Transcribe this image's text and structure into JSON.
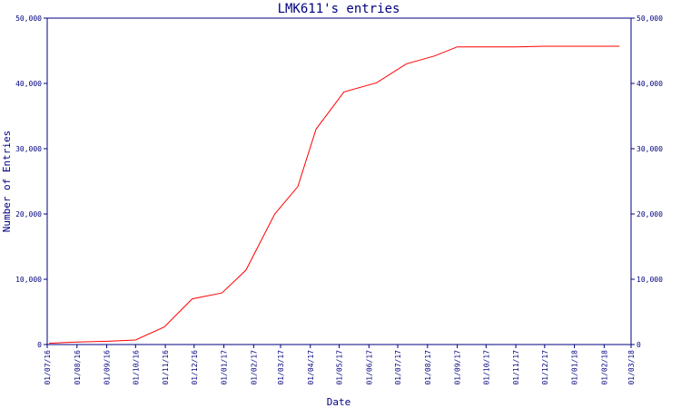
{
  "chart_data": {
    "type": "line",
    "title": "LMK611's entries",
    "xlabel": "Date",
    "ylabel": "Number of Entries",
    "ylim": [
      0,
      50000
    ],
    "y_ticks": [
      0,
      10000,
      20000,
      30000,
      40000,
      50000
    ],
    "y_tick_labels": [
      "0",
      "10,000",
      "20,000",
      "30,000",
      "40,000",
      "50,000"
    ],
    "x_ticks": [
      "2016-07-01",
      "2016-08-01",
      "2016-09-01",
      "2016-10-01",
      "2016-11-01",
      "2016-12-01",
      "2017-01-01",
      "2017-02-01",
      "2017-03-01",
      "2017-04-01",
      "2017-05-01",
      "2017-06-01",
      "2017-07-01",
      "2017-08-01",
      "2017-09-01",
      "2017-10-01",
      "2017-11-01",
      "2017-12-01",
      "2018-01-01",
      "2018-02-01",
      "2018-03-01"
    ],
    "x_tick_labels": [
      "01/07/16",
      "01/08/16",
      "01/09/16",
      "01/10/16",
      "01/11/16",
      "01/12/16",
      "01/01/17",
      "01/02/17",
      "01/03/17",
      "01/04/17",
      "01/05/17",
      "01/06/17",
      "01/07/17",
      "01/08/17",
      "01/09/17",
      "01/10/17",
      "01/11/17",
      "01/12/17",
      "01/01/18",
      "01/02/18",
      "01/03/18"
    ],
    "grid": false,
    "series": [
      {
        "color": "#ff0000",
        "x": [
          "2016-07-03",
          "2016-07-20",
          "2016-08-05",
          "2016-09-01",
          "2016-10-01",
          "2016-10-31",
          "2016-11-29",
          "2016-12-30",
          "2017-01-24",
          "2017-02-23",
          "2017-03-19",
          "2017-04-07",
          "2017-05-06",
          "2017-06-09",
          "2017-07-10",
          "2017-08-08",
          "2017-09-01",
          "2017-10-01",
          "2017-11-01",
          "2017-12-01",
          "2018-01-01",
          "2018-02-01",
          "2018-02-17"
        ],
        "values": [
          200,
          300,
          400,
          500,
          700,
          2700,
          7000,
          7900,
          11400,
          20000,
          24200,
          33000,
          38700,
          40100,
          43000,
          44200,
          45600,
          45600,
          45600,
          45700,
          45700,
          45700,
          45700
        ]
      }
    ]
  }
}
